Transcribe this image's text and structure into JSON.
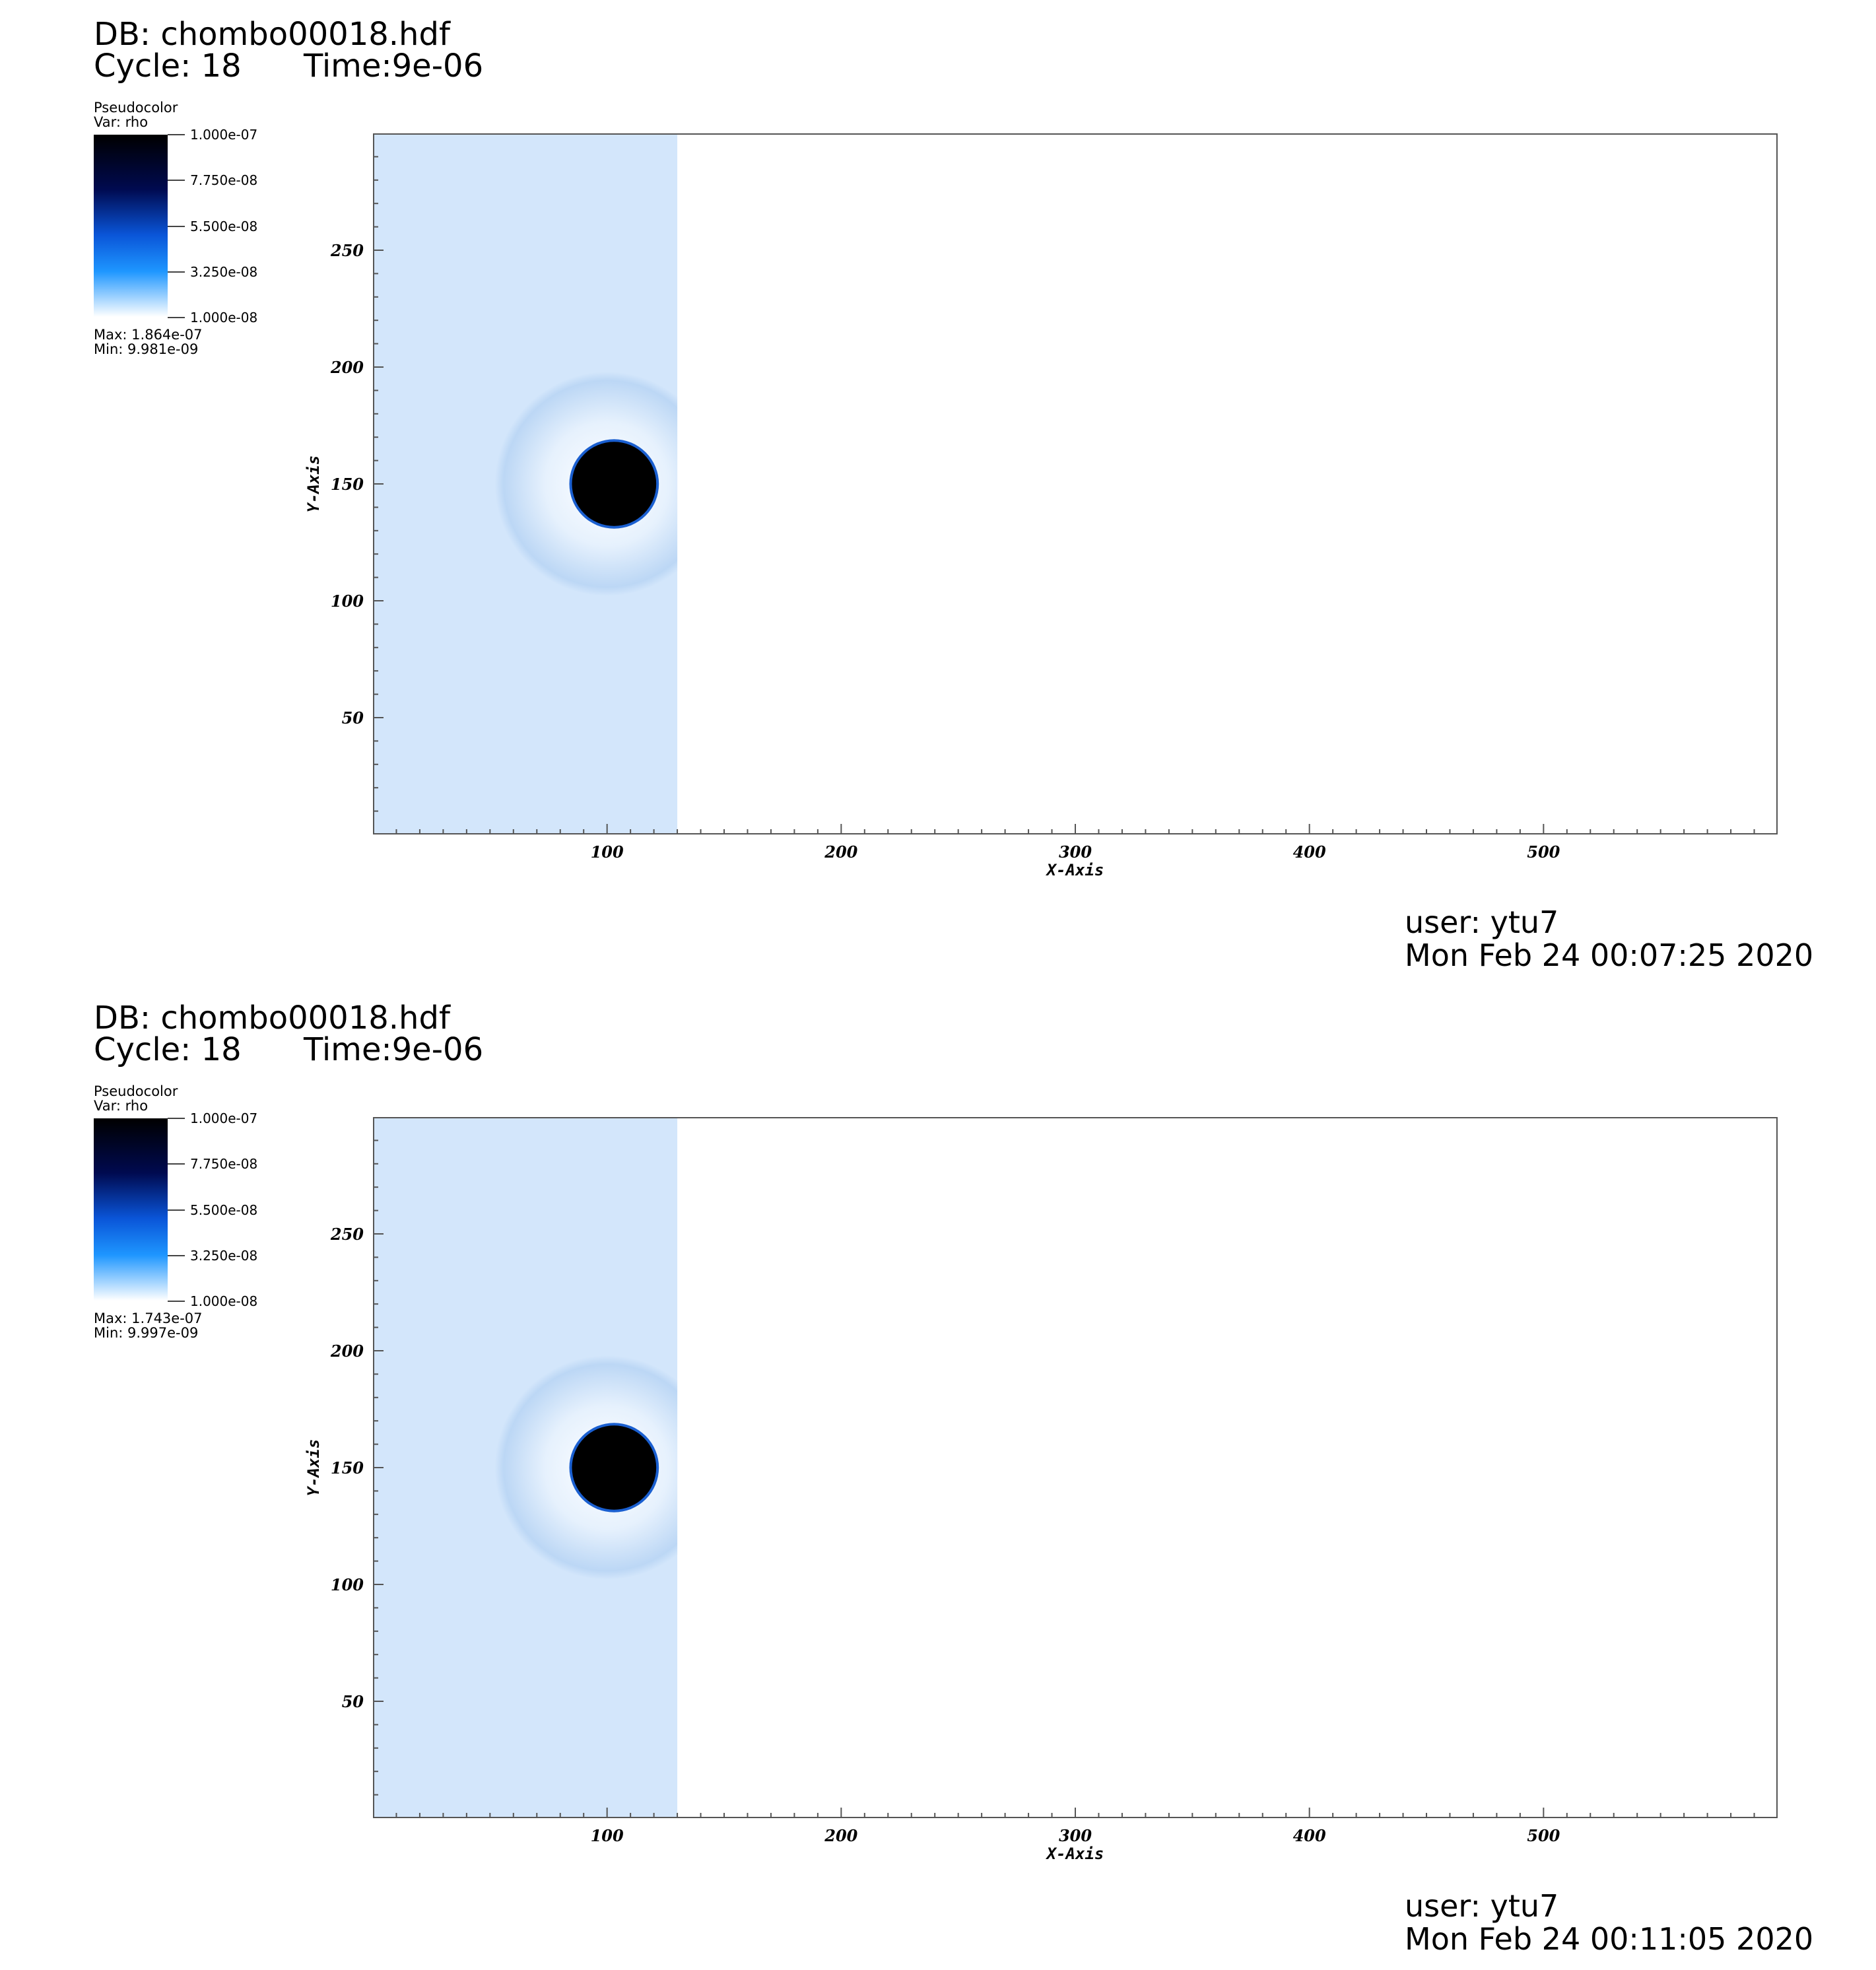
{
  "panels": [
    {
      "db_label": "DB: chombo00018.hdf",
      "cycle_label": "Cycle: 18",
      "time_label": "Time:9e-06",
      "legend": {
        "plot_type": "Pseudocolor",
        "var_label": "Var: rho",
        "ticks": [
          "1.000e-07",
          "7.750e-08",
          "5.500e-08",
          "3.250e-08",
          "1.000e-08"
        ],
        "max_label": "Max:  1.864e-07",
        "min_label": "Min:  9.981e-09"
      },
      "user_label": "user: ytu7",
      "timestamp": "Mon Feb 24 00:07:25 2020"
    },
    {
      "db_label": "DB: chombo00018.hdf",
      "cycle_label": "Cycle: 18",
      "time_label": "Time:9e-06",
      "legend": {
        "plot_type": "Pseudocolor",
        "var_label": "Var: rho",
        "ticks": [
          "1.000e-07",
          "7.750e-08",
          "5.500e-08",
          "3.250e-08",
          "1.000e-08"
        ],
        "max_label": "Max:  1.743e-07",
        "min_label": "Min:  9.997e-09"
      },
      "user_label": "user: ytu7",
      "timestamp": "Mon Feb 24 00:11:05 2020"
    }
  ],
  "colors": {
    "background_fluid": "#d3e6fb",
    "colorbar_top": "#000000",
    "colorbar_mid_dark": "#000a50",
    "colorbar_mid": "#0a55d8",
    "colorbar_light": "#1e96ff",
    "colorbar_bottom": "#ffffff",
    "dense_blob": "#000000"
  },
  "chart_data": [
    {
      "type": "heatmap",
      "variable": "rho",
      "xlabel": "X-Axis",
      "ylabel": "Y-Axis",
      "xlim": [
        0,
        600
      ],
      "ylim": [
        0,
        300
      ],
      "xticks": [
        100,
        200,
        300,
        400,
        500
      ],
      "yticks": [
        50,
        100,
        150,
        200,
        250
      ],
      "color_range": [
        1e-08,
        1e-07
      ],
      "data_max": 1.864e-07,
      "data_min": 9.981e-09,
      "features": [
        {
          "kind": "shocked_region",
          "x_range": [
            0,
            130
          ],
          "y_range": [
            0,
            300
          ]
        },
        {
          "kind": "bow_arc",
          "center_x": 100,
          "center_y": 150,
          "radius": 48
        },
        {
          "kind": "dense_clump",
          "center_x": 103,
          "center_y": 150,
          "radius": 18
        }
      ]
    },
    {
      "type": "heatmap",
      "variable": "rho",
      "xlabel": "X-Axis",
      "ylabel": "Y-Axis",
      "xlim": [
        0,
        600
      ],
      "ylim": [
        0,
        300
      ],
      "xticks": [
        100,
        200,
        300,
        400,
        500
      ],
      "yticks": [
        50,
        100,
        150,
        200,
        250
      ],
      "color_range": [
        1e-08,
        1e-07
      ],
      "data_max": 1.743e-07,
      "data_min": 9.997e-09,
      "features": [
        {
          "kind": "shocked_region",
          "x_range": [
            0,
            130
          ],
          "y_range": [
            0,
            300
          ]
        },
        {
          "kind": "bow_arc",
          "center_x": 100,
          "center_y": 150,
          "radius": 48
        },
        {
          "kind": "dense_clump",
          "center_x": 103,
          "center_y": 150,
          "radius": 18
        }
      ]
    }
  ]
}
